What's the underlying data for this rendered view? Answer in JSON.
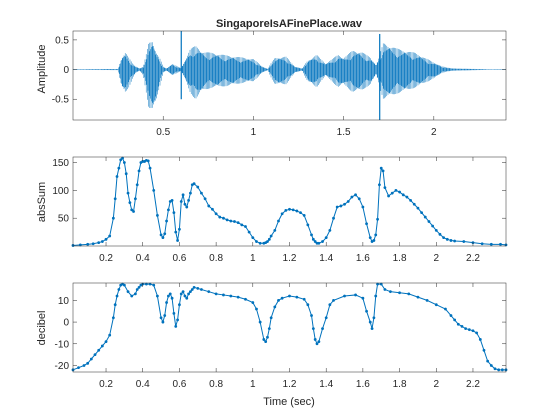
{
  "chart_data": [
    {
      "type": "line",
      "title": "SingaporeIsAFinePlace.wav",
      "xlabel": "",
      "ylabel": "Amplitude",
      "xlim": [
        0,
        2.4
      ],
      "ylim": [
        -0.85,
        0.65
      ],
      "xticks": [
        0.5,
        1,
        1.5,
        2
      ],
      "xtick_labels": [
        "0.5",
        "1",
        "1.5",
        "2"
      ],
      "yticks": [
        -0.5,
        0,
        0.5
      ],
      "ytick_labels": [
        "-0.5",
        "0",
        "0.5"
      ],
      "grid": false,
      "marker": "none",
      "line_color": "#0072BD",
      "series": [
        {
          "x": [
            0.02,
            0.25,
            0.27,
            0.29,
            0.3,
            0.31,
            0.33,
            0.35,
            0.37,
            0.39,
            0.42,
            0.44,
            0.46,
            0.48,
            0.5,
            0.52,
            0.55,
            0.58,
            0.6,
            0.62,
            0.65,
            0.68,
            0.72,
            0.78,
            0.85,
            0.9,
            0.95,
            1.0,
            1.05,
            1.08,
            1.1,
            1.12,
            1.18,
            1.23,
            1.27,
            1.3,
            1.35,
            1.4,
            1.47,
            1.5,
            1.55,
            1.6,
            1.65,
            1.68,
            1.7,
            1.72,
            1.8,
            1.9,
            2.0,
            2.05,
            2.1,
            2.3,
            2.4
          ],
          "envelope_max": [
            0.005,
            0.01,
            0.2,
            0.3,
            0.25,
            0.2,
            0.1,
            0.05,
            0.02,
            0.05,
            0.45,
            0.5,
            0.3,
            0.2,
            0.05,
            0.02,
            0.1,
            0.05,
            0.03,
            0.15,
            0.35,
            0.4,
            0.3,
            0.28,
            0.24,
            0.22,
            0.2,
            0.18,
            0.05,
            0.01,
            0.12,
            0.2,
            0.22,
            0.05,
            0.02,
            0.15,
            0.25,
            0.1,
            0.25,
            0.2,
            0.32,
            0.3,
            0.2,
            0.08,
            0.25,
            0.45,
            0.35,
            0.28,
            0.12,
            0.05,
            0.02,
            0.005,
            0.005
          ],
          "envelope_min": [
            -0.005,
            -0.01,
            -0.3,
            -0.4,
            -0.35,
            -0.3,
            -0.15,
            -0.05,
            -0.02,
            -0.1,
            -0.65,
            -0.7,
            -0.55,
            -0.3,
            -0.05,
            -0.02,
            -0.1,
            -0.05,
            -0.03,
            -0.15,
            -0.4,
            -0.5,
            -0.35,
            -0.3,
            -0.28,
            -0.25,
            -0.22,
            -0.2,
            -0.05,
            -0.01,
            -0.15,
            -0.25,
            -0.25,
            -0.05,
            -0.02,
            -0.2,
            -0.3,
            -0.1,
            -0.3,
            -0.25,
            -0.38,
            -0.35,
            -0.25,
            -0.08,
            -0.3,
            -0.5,
            -0.4,
            -0.3,
            -0.15,
            -0.05,
            -0.02,
            -0.005,
            -0.005
          ],
          "spikes": [
            {
              "x": 0.6,
              "max": 0.65,
              "min": -0.5
            },
            {
              "x": 1.7,
              "max": 0.6,
              "min": -0.85
            }
          ]
        }
      ]
    },
    {
      "type": "line",
      "title": "",
      "xlabel": "",
      "ylabel": "absSum",
      "xlim": [
        0.02,
        2.38
      ],
      "ylim": [
        0,
        160
      ],
      "xticks": [
        0.2,
        0.4,
        0.6,
        0.8,
        1,
        1.2,
        1.4,
        1.6,
        1.8,
        2,
        2.2
      ],
      "xtick_labels": [
        "0.2",
        "0.4",
        "0.6",
        "0.8",
        "1",
        "1.2",
        "1.4",
        "1.6",
        "1.8",
        "2",
        "2.2"
      ],
      "yticks": [
        50,
        100,
        150
      ],
      "ytick_labels": [
        "50",
        "100",
        "150"
      ],
      "grid": false,
      "marker": "dot",
      "line_color": "#0072BD",
      "series": [
        {
          "x": [
            0.02,
            0.06,
            0.1,
            0.13,
            0.16,
            0.18,
            0.2,
            0.22,
            0.24,
            0.25,
            0.26,
            0.27,
            0.28,
            0.29,
            0.3,
            0.31,
            0.32,
            0.33,
            0.34,
            0.35,
            0.36,
            0.37,
            0.38,
            0.39,
            0.4,
            0.41,
            0.42,
            0.43,
            0.44,
            0.46,
            0.48,
            0.5,
            0.51,
            0.52,
            0.53,
            0.54,
            0.55,
            0.56,
            0.57,
            0.58,
            0.59,
            0.6,
            0.61,
            0.62,
            0.63,
            0.64,
            0.65,
            0.66,
            0.67,
            0.68,
            0.7,
            0.72,
            0.74,
            0.76,
            0.78,
            0.8,
            0.82,
            0.84,
            0.86,
            0.88,
            0.9,
            0.92,
            0.94,
            0.96,
            0.98,
            1.0,
            1.02,
            1.04,
            1.06,
            1.07,
            1.08,
            1.09,
            1.1,
            1.12,
            1.14,
            1.16,
            1.18,
            1.2,
            1.22,
            1.24,
            1.26,
            1.28,
            1.3,
            1.32,
            1.33,
            1.34,
            1.35,
            1.36,
            1.38,
            1.4,
            1.42,
            1.44,
            1.46,
            1.48,
            1.5,
            1.52,
            1.54,
            1.56,
            1.58,
            1.6,
            1.62,
            1.64,
            1.65,
            1.66,
            1.67,
            1.68,
            1.69,
            1.7,
            1.71,
            1.72,
            1.74,
            1.76,
            1.78,
            1.8,
            1.82,
            1.84,
            1.86,
            1.88,
            1.9,
            1.92,
            1.94,
            1.96,
            1.98,
            2.0,
            2.02,
            2.04,
            2.06,
            2.08,
            2.1,
            2.15,
            2.2,
            2.25,
            2.3,
            2.35,
            2.38
          ],
          "y": [
            1,
            2,
            3,
            4,
            6,
            8,
            12,
            18,
            50,
            85,
            125,
            140,
            155,
            158,
            150,
            130,
            95,
            78,
            65,
            62,
            85,
            110,
            135,
            150,
            152,
            152,
            154,
            153,
            140,
            100,
            55,
            20,
            15,
            22,
            45,
            65,
            80,
            82,
            60,
            25,
            10,
            30,
            80,
            92,
            75,
            70,
            82,
            95,
            110,
            112,
            106,
            95,
            85,
            72,
            66,
            58,
            52,
            50,
            47,
            45,
            44,
            42,
            38,
            35,
            25,
            15,
            8,
            5,
            5,
            6,
            8,
            12,
            18,
            28,
            45,
            58,
            64,
            66,
            65,
            63,
            60,
            55,
            38,
            20,
            12,
            8,
            5,
            5,
            8,
            15,
            28,
            50,
            70,
            72,
            75,
            80,
            88,
            92,
            85,
            70,
            40,
            15,
            8,
            10,
            20,
            48,
            110,
            140,
            135,
            105,
            90,
            95,
            100,
            97,
            92,
            88,
            82,
            75,
            68,
            60,
            52,
            44,
            36,
            28,
            21,
            15,
            12,
            10,
            9,
            8,
            6,
            4,
            3,
            3,
            2
          ]
        }
      ]
    },
    {
      "type": "line",
      "title": "",
      "xlabel": "Time (sec)",
      "ylabel": "decibel",
      "xlim": [
        0.02,
        2.38
      ],
      "ylim": [
        -23,
        18
      ],
      "xticks": [
        0.2,
        0.4,
        0.6,
        0.8,
        1,
        1.2,
        1.4,
        1.6,
        1.8,
        2,
        2.2
      ],
      "xtick_labels": [
        "0.2",
        "0.4",
        "0.6",
        "0.8",
        "1",
        "1.2",
        "1.4",
        "1.6",
        "1.8",
        "2",
        "2.2"
      ],
      "yticks": [
        -20,
        -10,
        0,
        10
      ],
      "ytick_labels": [
        "-20",
        "-10",
        "0",
        "10"
      ],
      "grid": false,
      "marker": "dot",
      "line_color": "#0072BD",
      "series": [
        {
          "x": [
            0.02,
            0.05,
            0.08,
            0.1,
            0.12,
            0.14,
            0.16,
            0.18,
            0.2,
            0.22,
            0.24,
            0.25,
            0.26,
            0.27,
            0.28,
            0.29,
            0.3,
            0.32,
            0.34,
            0.36,
            0.37,
            0.38,
            0.39,
            0.4,
            0.42,
            0.44,
            0.46,
            0.48,
            0.5,
            0.51,
            0.52,
            0.53,
            0.54,
            0.55,
            0.56,
            0.57,
            0.58,
            0.59,
            0.6,
            0.61,
            0.62,
            0.63,
            0.64,
            0.65,
            0.66,
            0.67,
            0.68,
            0.7,
            0.72,
            0.76,
            0.8,
            0.84,
            0.88,
            0.92,
            0.96,
            1.0,
            1.02,
            1.04,
            1.06,
            1.07,
            1.08,
            1.09,
            1.1,
            1.12,
            1.14,
            1.16,
            1.2,
            1.24,
            1.28,
            1.3,
            1.32,
            1.33,
            1.34,
            1.35,
            1.36,
            1.38,
            1.4,
            1.42,
            1.44,
            1.5,
            1.56,
            1.6,
            1.62,
            1.64,
            1.65,
            1.66,
            1.67,
            1.68,
            1.7,
            1.72,
            1.75,
            1.8,
            1.85,
            1.9,
            1.95,
            2.0,
            2.05,
            2.08,
            2.1,
            2.12,
            2.14,
            2.16,
            2.18,
            2.2,
            2.22,
            2.24,
            2.26,
            2.28,
            2.3,
            2.32,
            2.34,
            2.36,
            2.38
          ],
          "y": [
            -22,
            -21,
            -20,
            -19,
            -17,
            -15,
            -13,
            -11,
            -9,
            -6,
            2,
            8,
            12,
            15,
            17,
            17.5,
            17,
            14,
            12,
            13,
            15,
            16,
            17,
            17.5,
            17.5,
            17.5,
            17,
            12,
            2,
            0,
            3,
            9,
            12,
            13,
            11,
            4,
            -2,
            1,
            8,
            13,
            14,
            12,
            11,
            13,
            14,
            15,
            16,
            15.5,
            15,
            14,
            13,
            12.5,
            12,
            11.5,
            10.5,
            9,
            6,
            0,
            -8,
            -9,
            -7,
            -3,
            2,
            7,
            10,
            11,
            12,
            11.5,
            10.5,
            8,
            3,
            -3,
            -8,
            -10,
            -9,
            -3,
            2,
            8,
            10,
            12,
            12.5,
            11,
            5,
            0,
            -3,
            2,
            12,
            17.5,
            17.5,
            15,
            14,
            13.5,
            13,
            11.5,
            10,
            8,
            6,
            3,
            1,
            -1,
            -2,
            -3,
            -3.5,
            -4,
            -5,
            -8,
            -13,
            -18,
            -20,
            -21.5,
            -22,
            -22,
            -22
          ]
        }
      ]
    }
  ]
}
